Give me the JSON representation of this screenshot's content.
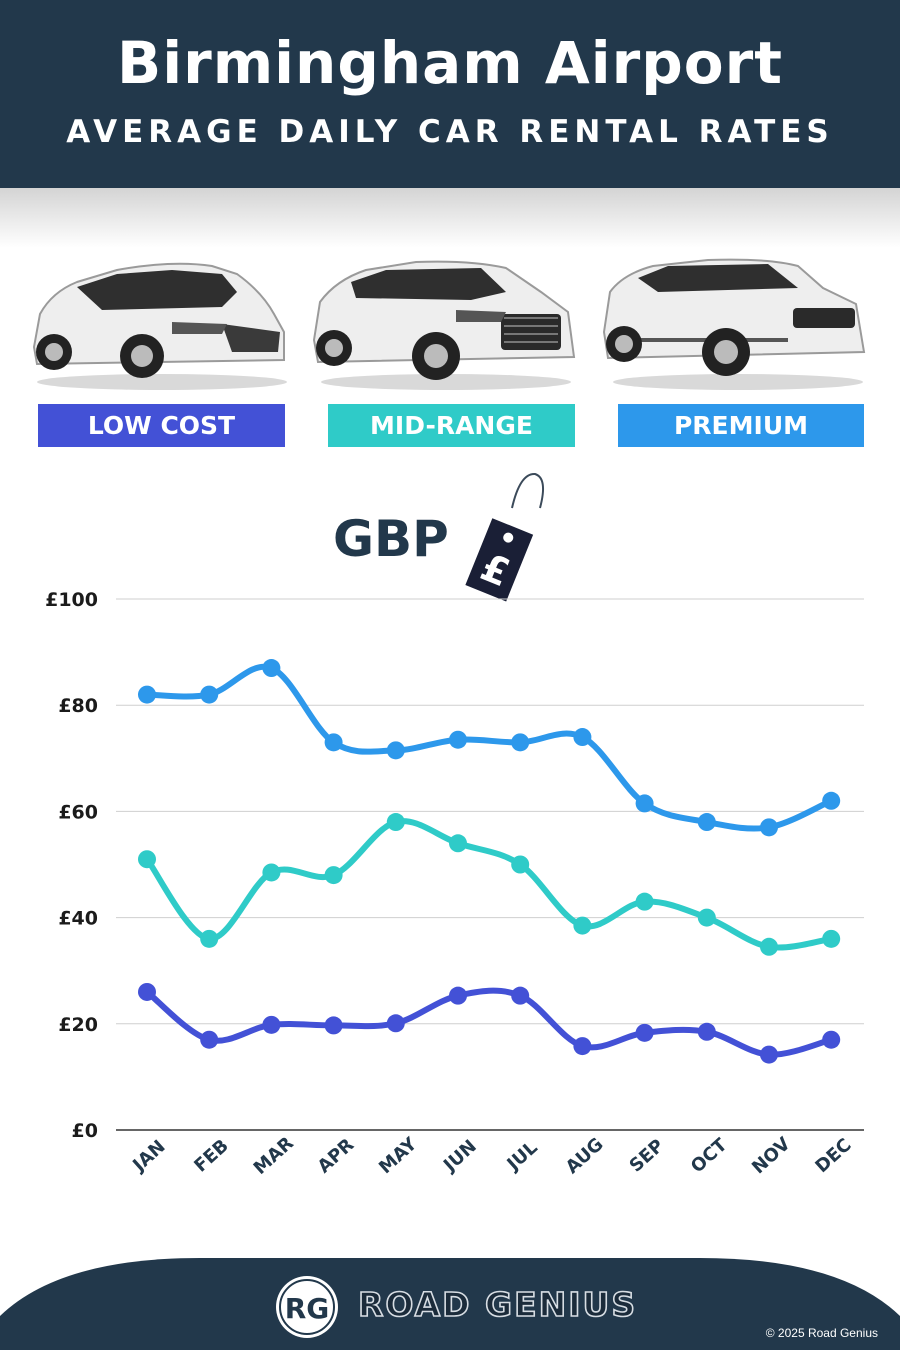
{
  "header": {
    "title": "Birmingham Airport",
    "subtitle": "AVERAGE DAILY CAR RENTAL RATES"
  },
  "categories": [
    {
      "label": "LOW COST",
      "color": "#4351d6"
    },
    {
      "label": "MID-RANGE",
      "color": "#2fcbc8"
    },
    {
      "label": "PREMIUM",
      "color": "#2d98eb"
    }
  ],
  "currency_label": "GBP",
  "currency_icon": "pound-price-tag-icon",
  "chart_data": {
    "type": "line",
    "x": [
      "JAN",
      "FEB",
      "MAR",
      "APR",
      "MAY",
      "JUN",
      "JUL",
      "AUG",
      "SEP",
      "OCT",
      "NOV",
      "DEC"
    ],
    "yticks": [
      "£0",
      "£20",
      "£40",
      "£60",
      "£80",
      "£100"
    ],
    "ylim": [
      0,
      100
    ],
    "grid": true,
    "series": [
      {
        "name": "PREMIUM",
        "color": "#2d98eb",
        "values": [
          82,
          82,
          87,
          73,
          71.5,
          73.5,
          73,
          74,
          61.5,
          58,
          57,
          62
        ]
      },
      {
        "name": "MID-RANGE",
        "color": "#2fcbc8",
        "values": [
          51,
          36,
          48.5,
          48,
          58,
          54,
          50,
          38.5,
          43,
          40,
          34.5,
          36
        ]
      },
      {
        "name": "LOW COST",
        "color": "#4351d6",
        "values": [
          26,
          17,
          19.8,
          19.7,
          20.1,
          25.3,
          25.3,
          15.8,
          18.3,
          18.5,
          14.2,
          17
        ]
      }
    ]
  },
  "footer": {
    "logo_text": "RG",
    "brand": "ROAD GENIUS",
    "copyright": "© 2025 Road Genius",
    "background": "#22384b"
  }
}
